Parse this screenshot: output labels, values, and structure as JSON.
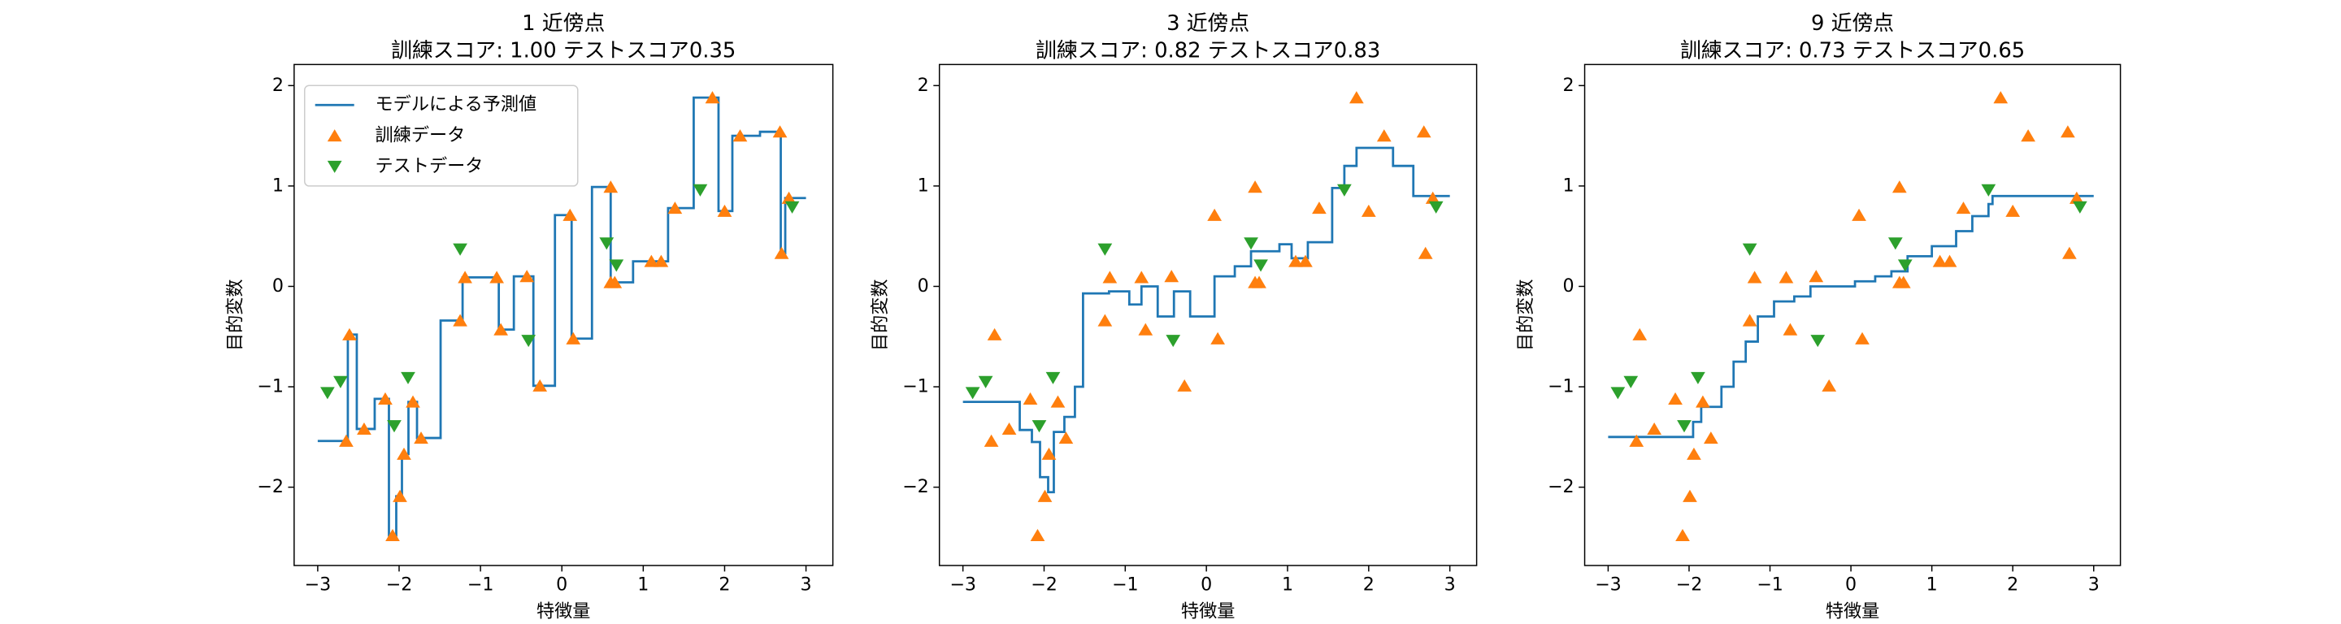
{
  "chart_data": [
    {
      "type": "line",
      "title": "1 近傍点",
      "subtitle": "訓練スコア: 1.00 テストスコア0.35",
      "xlabel": "特徴量",
      "ylabel": "目的変数",
      "legend": "upper left",
      "xlim": [
        -3.29,
        3.33
      ],
      "ylim": [
        -2.78,
        2.21
      ],
      "xticks": [
        {
          "value": -3,
          "label": "−3"
        },
        {
          "value": -2,
          "label": "−2"
        },
        {
          "value": -1,
          "label": "−1"
        },
        0,
        1,
        2,
        3
      ],
      "yticks": [
        {
          "value": -2,
          "label": "−2"
        },
        {
          "value": -1,
          "label": "−1"
        },
        0,
        1,
        2
      ],
      "series": [
        {
          "name": "モデルによる予測値",
          "type": "line",
          "step": "mid",
          "color": "#1f77b4",
          "x": [
            -3,
            -2.65,
            -2.61,
            -2.43,
            -2.17,
            -2.08,
            -1.99,
            -1.94,
            -1.83,
            -1.73,
            -1.25,
            -1.19,
            -0.8,
            -0.75,
            -0.43,
            -0.27,
            0.1,
            0.14,
            0.6,
            0.6,
            0.65,
            1.1,
            1.22,
            1.39,
            1.85,
            2.0,
            2.19,
            2.68,
            2.7,
            2.79,
            3
          ],
          "values": [
            -1.54,
            -1.54,
            -0.48,
            -1.42,
            -1.12,
            -2.48,
            -2.09,
            -1.67,
            -1.15,
            -1.51,
            -0.34,
            0.09,
            0.09,
            -0.43,
            0.1,
            -0.99,
            0.71,
            -0.52,
            0.99,
            0.04,
            0.04,
            0.25,
            0.25,
            0.78,
            1.88,
            0.75,
            1.5,
            1.54,
            0.33,
            0.88,
            0.88
          ]
        },
        {
          "name": "訓練データ",
          "type": "scatter",
          "marker": "^",
          "color": "#ff7f0e",
          "x": [
            -2.65,
            -2.61,
            -2.43,
            -2.17,
            -2.08,
            -1.99,
            -1.94,
            -1.83,
            -1.73,
            -1.25,
            -1.19,
            -0.8,
            -0.75,
            -0.43,
            -0.27,
            0.1,
            0.14,
            0.6,
            0.6,
            0.65,
            1.1,
            1.22,
            1.39,
            1.85,
            2.0,
            2.19,
            2.68,
            2.7,
            2.79
          ],
          "values": [
            -1.54,
            -0.48,
            -1.42,
            -1.12,
            -2.48,
            -2.09,
            -1.67,
            -1.15,
            -1.51,
            -0.34,
            0.09,
            0.09,
            -0.43,
            0.1,
            -0.99,
            0.71,
            -0.52,
            0.99,
            0.04,
            0.04,
            0.25,
            0.25,
            0.78,
            1.88,
            0.75,
            1.5,
            1.54,
            0.33,
            0.88
          ]
        },
        {
          "name": "テストデータ",
          "type": "scatter",
          "marker": "v",
          "color": "#2ca02c",
          "x": [
            -2.88,
            -2.72,
            -2.06,
            -1.89,
            -1.25,
            -0.41,
            0.55,
            0.67,
            1.7,
            2.83
          ],
          "values": [
            -1.06,
            -0.95,
            -1.39,
            -0.91,
            0.37,
            -0.54,
            0.43,
            0.21,
            0.96,
            0.79
          ]
        }
      ]
    },
    {
      "type": "line",
      "title": "3 近傍点",
      "subtitle": "訓練スコア: 0.82 テストスコア0.83",
      "xlabel": "特徴量",
      "ylabel": "目的変数",
      "xlim": [
        -3.29,
        3.33
      ],
      "ylim": [
        -2.78,
        2.21
      ],
      "xticks": [
        {
          "value": -3,
          "label": "−3"
        },
        {
          "value": -2,
          "label": "−2"
        },
        {
          "value": -1,
          "label": "−1"
        },
        0,
        1,
        2,
        3
      ],
      "yticks": [
        {
          "value": -2,
          "label": "−2"
        },
        {
          "value": -1,
          "label": "−1"
        },
        0,
        1,
        2
      ],
      "series": [
        {
          "type": "line",
          "step": "post",
          "color": "#1f77b4",
          "x": [
            -3,
            -2.3,
            -2.15,
            -2.05,
            -1.95,
            -1.88,
            -1.75,
            -1.62,
            -1.52,
            -1.2,
            -0.95,
            -0.8,
            -0.6,
            -0.4,
            -0.2,
            0.1,
            0.35,
            0.55,
            0.9,
            1.05,
            1.25,
            1.55,
            1.7,
            1.85,
            2.3,
            2.55,
            3
          ],
          "values": [
            -1.15,
            -1.43,
            -1.55,
            -1.9,
            -2.05,
            -1.45,
            -1.3,
            -1.0,
            -0.07,
            -0.05,
            -0.18,
            0.0,
            -0.3,
            -0.05,
            -0.3,
            0.1,
            0.2,
            0.35,
            0.42,
            0.28,
            0.44,
            0.98,
            1.2,
            1.38,
            1.2,
            0.9,
            0.9
          ]
        },
        {
          "type": "scatter",
          "marker": "^",
          "color": "#ff7f0e",
          "x": [
            -2.65,
            -2.61,
            -2.43,
            -2.17,
            -2.08,
            -1.99,
            -1.94,
            -1.83,
            -1.73,
            -1.25,
            -1.19,
            -0.8,
            -0.75,
            -0.43,
            -0.27,
            0.1,
            0.14,
            0.6,
            0.6,
            0.65,
            1.1,
            1.22,
            1.39,
            1.85,
            2.0,
            2.19,
            2.68,
            2.7,
            2.79
          ],
          "values": [
            -1.54,
            -0.48,
            -1.42,
            -1.12,
            -2.48,
            -2.09,
            -1.67,
            -1.15,
            -1.51,
            -0.34,
            0.09,
            0.09,
            -0.43,
            0.1,
            -0.99,
            0.71,
            -0.52,
            0.99,
            0.04,
            0.04,
            0.25,
            0.25,
            0.78,
            1.88,
            0.75,
            1.5,
            1.54,
            0.33,
            0.88
          ]
        },
        {
          "type": "scatter",
          "marker": "v",
          "color": "#2ca02c",
          "x": [
            -2.88,
            -2.72,
            -2.06,
            -1.89,
            -1.25,
            -0.41,
            0.55,
            0.67,
            1.7,
            2.83
          ],
          "values": [
            -1.06,
            -0.95,
            -1.39,
            -0.91,
            0.37,
            -0.54,
            0.43,
            0.21,
            0.96,
            0.79
          ]
        }
      ]
    },
    {
      "type": "line",
      "title": "9 近傍点",
      "subtitle": "訓練スコア: 0.73 テストスコア0.65",
      "xlabel": "特徴量",
      "ylabel": "目的変数",
      "xlim": [
        -3.29,
        3.33
      ],
      "ylim": [
        -2.78,
        2.21
      ],
      "xticks": [
        {
          "value": -3,
          "label": "−3"
        },
        {
          "value": -2,
          "label": "−2"
        },
        {
          "value": -1,
          "label": "−1"
        },
        0,
        1,
        2,
        3
      ],
      "yticks": [
        {
          "value": -2,
          "label": "−2"
        },
        {
          "value": -1,
          "label": "−1"
        },
        0,
        1,
        2
      ],
      "series": [
        {
          "type": "line",
          "step": "post",
          "color": "#1f77b4",
          "x": [
            -3,
            -1.95,
            -1.85,
            -1.6,
            -1.45,
            -1.3,
            -1.15,
            -0.95,
            -0.7,
            -0.5,
            0.05,
            0.3,
            0.5,
            0.7,
            1.0,
            1.3,
            1.5,
            1.7,
            1.75,
            3
          ],
          "values": [
            -1.5,
            -1.35,
            -1.2,
            -1.0,
            -0.75,
            -0.55,
            -0.3,
            -0.15,
            -0.1,
            0.0,
            0.05,
            0.1,
            0.15,
            0.3,
            0.4,
            0.55,
            0.7,
            0.82,
            0.9,
            0.9
          ]
        },
        {
          "type": "scatter",
          "marker": "^",
          "color": "#ff7f0e",
          "x": [
            -2.65,
            -2.61,
            -2.43,
            -2.17,
            -2.08,
            -1.99,
            -1.94,
            -1.83,
            -1.73,
            -1.25,
            -1.19,
            -0.8,
            -0.75,
            -0.43,
            -0.27,
            0.1,
            0.14,
            0.6,
            0.6,
            0.65,
            1.1,
            1.22,
            1.39,
            1.85,
            2.0,
            2.19,
            2.68,
            2.7,
            2.79
          ],
          "values": [
            -1.54,
            -0.48,
            -1.42,
            -1.12,
            -2.48,
            -2.09,
            -1.67,
            -1.15,
            -1.51,
            -0.34,
            0.09,
            0.09,
            -0.43,
            0.1,
            -0.99,
            0.71,
            -0.52,
            0.99,
            0.04,
            0.04,
            0.25,
            0.25,
            0.78,
            1.88,
            0.75,
            1.5,
            1.54,
            0.33,
            0.88
          ]
        },
        {
          "type": "scatter",
          "marker": "v",
          "color": "#2ca02c",
          "x": [
            -2.88,
            -2.72,
            -2.06,
            -1.89,
            -1.25,
            -0.41,
            0.55,
            0.67,
            1.7,
            2.83
          ],
          "values": [
            -1.06,
            -0.95,
            -1.39,
            -0.91,
            0.37,
            -0.54,
            0.43,
            0.21,
            0.96,
            0.79
          ]
        }
      ]
    }
  ]
}
